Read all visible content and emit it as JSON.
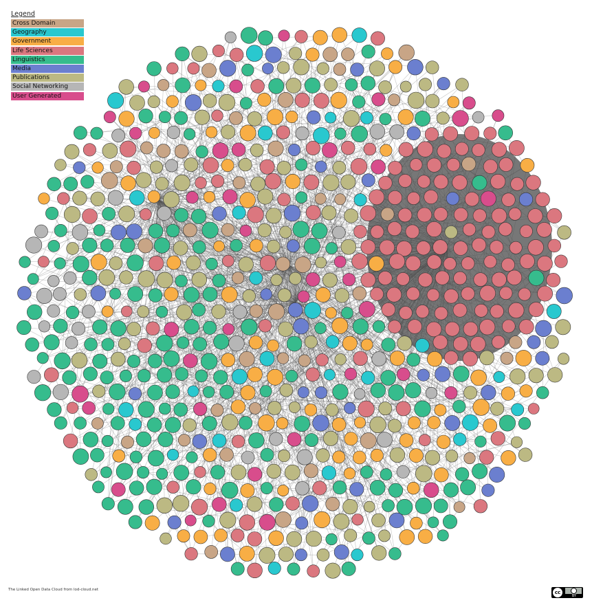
{
  "legend": {
    "title": "Legend",
    "items": [
      {
        "label": "Cross Domain",
        "color": "#c8a586"
      },
      {
        "label": "Geography",
        "color": "#29c8cf"
      },
      {
        "label": "Government",
        "color": "#f8ae45"
      },
      {
        "label": "Life Sciences",
        "color": "#db777f"
      },
      {
        "label": "Linguistics",
        "color": "#36bc8d"
      },
      {
        "label": "Media",
        "color": "#6b7fcf"
      },
      {
        "label": "Publications",
        "color": "#bcb983"
      },
      {
        "label": "Social Networking",
        "color": "#b6b6b6"
      },
      {
        "label": "User Generated",
        "color": "#d84d8c"
      }
    ]
  },
  "footer": {
    "credit": "The Linked Open Data Cloud from lod-cloud.net"
  },
  "license": {
    "cc": "cc",
    "by": "BY"
  }
}
